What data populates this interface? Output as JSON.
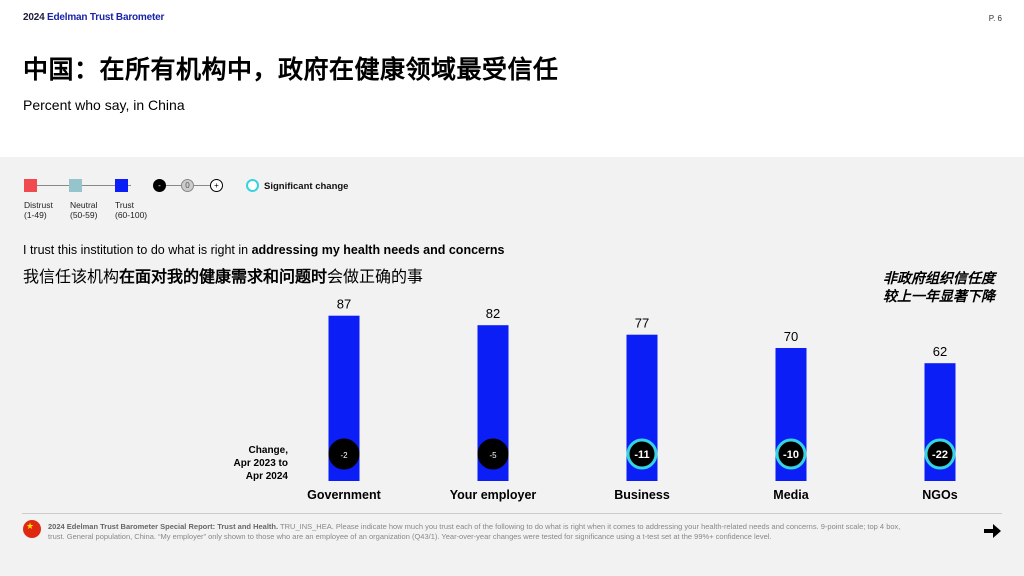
{
  "header": {
    "brand_year": "2024",
    "brand_name": "Edelman Trust Barometer",
    "page_number": "P. 6",
    "title": "中国：在所有机构中，政府在健康领域最受信任",
    "subtitle": "Percent who say, in China"
  },
  "legend": {
    "distrust_label": "Distrust",
    "distrust_range": "(1-49)",
    "neutral_label": "Neutral",
    "neutral_range": "(50-59)",
    "trust_label": "Trust",
    "trust_range": "(60-100)",
    "minus_symbol": "-",
    "zero_symbol": "0",
    "plus_symbol": "+",
    "significant_change_label": "Significant change",
    "colors": {
      "distrust": "#f04a50",
      "neutral": "#95c4cc",
      "trust": "#0a1ef5",
      "significant": "#35d4e0"
    }
  },
  "question": {
    "en_prefix": "I trust this institution to do what is right in ",
    "en_bold": "addressing my health needs and concerns",
    "zh_prefix": "我信任该机构",
    "zh_bold": "在面对我的健康需求和问题时",
    "zh_suffix": "会做正确的事"
  },
  "callout": {
    "line1": "非政府组织信任度",
    "line2": "较上一年显著下降"
  },
  "change_label": {
    "line1": "Change,",
    "line2": "Apr 2023 to",
    "line3": "Apr 2024"
  },
  "chart_data": {
    "type": "bar",
    "categories": [
      "Government",
      "Your employer",
      "Business",
      "Media",
      "NGOs"
    ],
    "values": [
      87,
      82,
      77,
      70,
      62
    ],
    "changes": [
      "-2",
      "-5",
      "-11",
      "-10",
      "-22"
    ],
    "significant": [
      false,
      false,
      true,
      true,
      true
    ],
    "bar_color": "#0a1ef5",
    "ylim": [
      0,
      100
    ]
  },
  "footer": {
    "source_bold": "2024 Edelman Trust Barometer Special Report: Trust and Health.",
    "source_text": " TRU_INS_HEA. Please indicate how much you trust each of the following to do what is right when it comes to addressing your health-related needs and concerns. 9-point scale; top 4 box, trust. General population, China. “My employer” only shown to those who are an employee of an organization (Q43/1). Year-over-year changes were tested for significance using a t-test set at the 99%+ confidence level."
  }
}
